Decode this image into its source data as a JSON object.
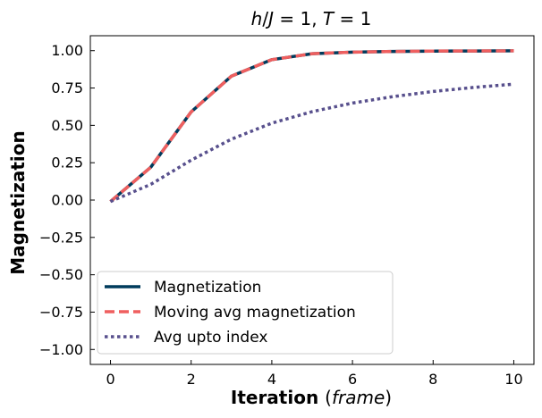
{
  "chart_data": {
    "type": "line",
    "title_parts": [
      {
        "text": "h",
        "italic": true
      },
      {
        "text": "/",
        "italic": false
      },
      {
        "text": "J",
        "italic": true
      },
      {
        "text": " = 1, ",
        "italic": false
      },
      {
        "text": "T",
        "italic": true
      },
      {
        "text": " = 1",
        "italic": false
      }
    ],
    "xlabel_parts": [
      {
        "text": "Iteration ",
        "italic": false,
        "bold": true
      },
      {
        "text": "(",
        "italic": false,
        "bold": false
      },
      {
        "text": "frame",
        "italic": true,
        "bold": false
      },
      {
        "text": ")",
        "italic": false,
        "bold": false
      }
    ],
    "ylabel": "Magnetization",
    "xlim": [
      -0.5,
      10.5
    ],
    "ylim": [
      -1.1,
      1.1
    ],
    "xticks": [
      0,
      2,
      4,
      6,
      8,
      10
    ],
    "xtick_labels": [
      "0",
      "2",
      "4",
      "6",
      "8",
      "10"
    ],
    "yticks": [
      1.0,
      0.75,
      0.5,
      0.25,
      0.0,
      -0.25,
      -0.5,
      -0.75,
      -1.0
    ],
    "ytick_labels": [
      "1.00",
      "0.75",
      "0.50",
      "0.25",
      "0.00",
      "−0.25",
      "−0.50",
      "−0.75",
      "−1.00"
    ],
    "grid": false,
    "legend_position": "lower-left",
    "x": [
      0,
      1,
      2,
      3,
      4,
      5,
      6,
      7,
      8,
      9,
      10
    ],
    "series": [
      {
        "name": "Magnetization",
        "color": "#003b5c",
        "style": "solid",
        "values": [
          -0.01,
          0.22,
          0.59,
          0.83,
          0.94,
          0.98,
          0.99,
          0.995,
          0.997,
          0.998,
          0.999
        ]
      },
      {
        "name": "Moving avg magnetization",
        "color": "#ef5f5f",
        "style": "dashed",
        "values": [
          -0.01,
          0.22,
          0.59,
          0.83,
          0.94,
          0.98,
          0.99,
          0.995,
          0.997,
          0.998,
          0.999
        ]
      },
      {
        "name": "Avg upto index",
        "color": "#58508d",
        "style": "dotted",
        "values": [
          -0.01,
          0.105,
          0.267,
          0.408,
          0.515,
          0.592,
          0.649,
          0.692,
          0.727,
          0.754,
          0.776
        ]
      }
    ]
  }
}
